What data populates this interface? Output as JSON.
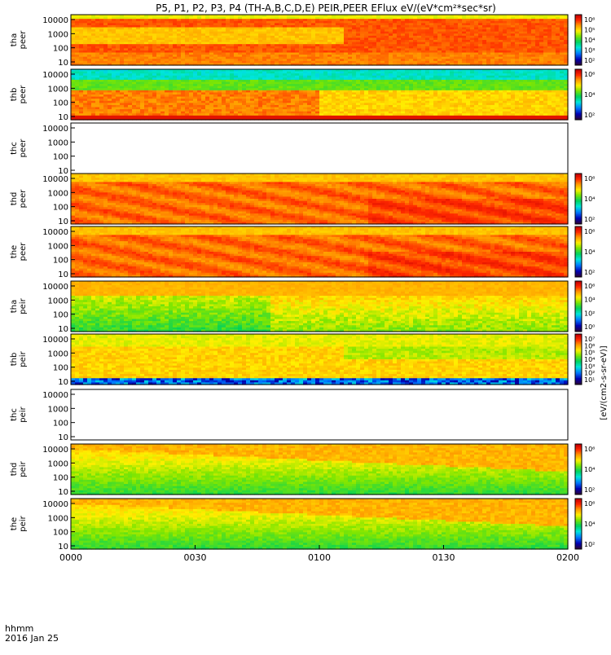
{
  "title": "P5, P1, P2, P3, P4 (TH-A,B,C,D,E) PEIR,PEER EFlux eV/(eV*cm²*sec*sr)",
  "colorbar_label": "[eV/(cm2-s-sr-eV)]",
  "footer": {
    "time_label": "hhmm",
    "date_label": "2016 Jan 25"
  },
  "chart_data": {
    "type": "heatmap",
    "x_ticks": [
      "0000",
      "0030",
      "0100",
      "0130",
      "0200"
    ],
    "xlim": [
      "0000",
      "0200"
    ],
    "y_scale": "log",
    "y_ticks": [
      "10",
      "100",
      "1000",
      "10000"
    ],
    "panels": [
      {
        "label": [
          "tha",
          "peer"
        ],
        "has_data": true,
        "cbar_ticks": [
          "10²",
          "10³",
          "10⁴",
          "10⁵",
          "10⁶"
        ],
        "profile": "peer_a"
      },
      {
        "label": [
          "thb",
          "peer"
        ],
        "has_data": true,
        "cbar_ticks": [
          "10²",
          "10⁴",
          "10⁶"
        ],
        "profile": "peer_b"
      },
      {
        "label": [
          "thc",
          "peer"
        ],
        "has_data": false,
        "cbar_ticks": [],
        "profile": "none"
      },
      {
        "label": [
          "thd",
          "peer"
        ],
        "has_data": true,
        "cbar_ticks": [
          "10²",
          "10⁴",
          "10⁶"
        ],
        "profile": "peer_d"
      },
      {
        "label": [
          "the",
          "peer"
        ],
        "has_data": true,
        "cbar_ticks": [
          "10²",
          "10⁴",
          "10⁶"
        ],
        "profile": "peer_e"
      },
      {
        "label": [
          "tha",
          "peir"
        ],
        "has_data": true,
        "cbar_ticks": [
          "10⁰",
          "10²",
          "10⁴",
          "10⁶"
        ],
        "profile": "peir_a"
      },
      {
        "label": [
          "thb",
          "peir"
        ],
        "has_data": true,
        "cbar_ticks": [
          "10¹",
          "10²",
          "10³",
          "10⁴",
          "10⁵",
          "10⁶",
          "10⁷"
        ],
        "profile": "peir_b"
      },
      {
        "label": [
          "thc",
          "peir"
        ],
        "has_data": false,
        "cbar_ticks": [],
        "profile": "none"
      },
      {
        "label": [
          "thd",
          "peir"
        ],
        "has_data": true,
        "cbar_ticks": [
          "10²",
          "10⁴",
          "10⁶"
        ],
        "profile": "peir_d"
      },
      {
        "label": [
          "the",
          "peir"
        ],
        "has_data": true,
        "cbar_ticks": [
          "10²",
          "10⁴",
          "10⁶"
        ],
        "profile": "peir_e"
      }
    ]
  }
}
